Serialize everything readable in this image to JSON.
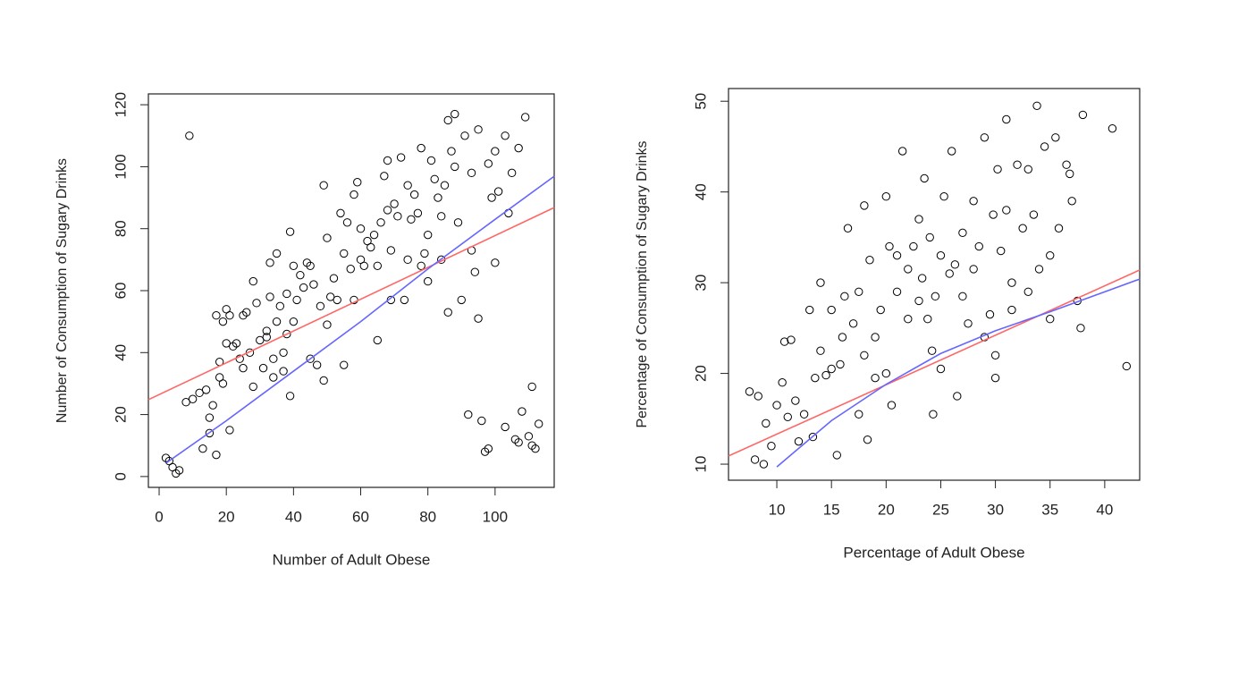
{
  "chart_data": [
    {
      "type": "scatter",
      "xlabel": "Number of Adult Obese",
      "ylabel": "Number of Consumption of Sugary Drinks",
      "xlim": [
        -3.2,
        117.6
      ],
      "ylim": [
        -3.5,
        123.5
      ],
      "xticks": [
        0,
        20,
        40,
        60,
        80,
        100
      ],
      "yticks": [
        0,
        20,
        40,
        60,
        80,
        100,
        120
      ],
      "color": "#000000",
      "x": [
        9,
        2,
        3,
        4,
        5,
        6,
        8,
        10,
        12,
        13,
        14,
        15,
        15,
        16,
        17,
        17,
        18,
        18,
        19,
        19,
        20,
        20,
        21,
        21,
        22,
        23,
        24,
        25,
        25,
        26,
        27,
        28,
        28,
        29,
        30,
        31,
        32,
        32,
        33,
        33,
        34,
        34,
        35,
        35,
        36,
        37,
        37,
        38,
        38,
        39,
        39,
        40,
        40,
        41,
        42,
        43,
        44,
        45,
        45,
        46,
        47,
        48,
        49,
        49,
        50,
        50,
        51,
        52,
        53,
        54,
        55,
        55,
        56,
        57,
        58,
        58,
        59,
        60,
        60,
        61,
        62,
        63,
        64,
        65,
        65,
        66,
        67,
        68,
        68,
        69,
        69,
        70,
        71,
        72,
        73,
        74,
        74,
        75,
        76,
        77,
        78,
        78,
        79,
        80,
        80,
        81,
        82,
        83,
        84,
        84,
        85,
        86,
        86,
        87,
        88,
        88,
        89,
        90,
        91,
        92,
        93,
        93,
        94,
        95,
        95,
        96,
        97,
        98,
        98,
        99,
        100,
        100,
        101,
        103,
        103,
        104,
        105,
        106,
        107,
        107,
        108,
        109,
        110,
        111,
        111,
        112,
        113
      ],
      "values": [
        110,
        6,
        5,
        3,
        1,
        2,
        24,
        25,
        27,
        9,
        28,
        19,
        14,
        23,
        7,
        52,
        37,
        32,
        30,
        50,
        54,
        43,
        15,
        52,
        42,
        43,
        38,
        35,
        52,
        53,
        40,
        29,
        63,
        56,
        44,
        35,
        47,
        45,
        69,
        58,
        38,
        32,
        50,
        72,
        55,
        40,
        34,
        59,
        46,
        26,
        79,
        68,
        50,
        57,
        65,
        61,
        69,
        38,
        68,
        62,
        36,
        55,
        94,
        31,
        49,
        77,
        58,
        64,
        57,
        85,
        36,
        72,
        82,
        67,
        91,
        57,
        95,
        80,
        70,
        68,
        76,
        74,
        78,
        44,
        68,
        82,
        97,
        102,
        86,
        73,
        57,
        88,
        84,
        103,
        57,
        94,
        70,
        83,
        91,
        85,
        106,
        68,
        72,
        78,
        63,
        102,
        96,
        90,
        70,
        84,
        94,
        53,
        115,
        105,
        117,
        100,
        82,
        57,
        110,
        20,
        73,
        98,
        66,
        51,
        112,
        18,
        8,
        9,
        101,
        90,
        69,
        105,
        92,
        110,
        16,
        85,
        98,
        12,
        11,
        106,
        21,
        116,
        13,
        29,
        10,
        9,
        17
      ],
      "lines": [
        {
          "color": "#ff6666",
          "x": [
            -3.2,
            117.6
          ],
          "values": [
            24.8,
            86.8
          ]
        },
        {
          "color": "#6666ff",
          "x": [
            2,
            20,
            40,
            60,
            80,
            100,
            117.6
          ],
          "values": [
            4.3,
            18,
            34,
            50,
            67,
            83,
            96.9
          ]
        }
      ]
    },
    {
      "type": "scatter",
      "xlabel": "Percentage of Adult Obese",
      "ylabel": "Percentage of Consumption of Sugary Drinks",
      "xlim": [
        5.58,
        43.2
      ],
      "ylim": [
        8.23,
        51.4
      ],
      "xticks": [
        10,
        15,
        20,
        25,
        30,
        35,
        40
      ],
      "yticks": [
        10,
        20,
        30,
        40,
        50
      ],
      "color": "#000000",
      "x": [
        7.5,
        8,
        8.3,
        8.8,
        9,
        9.5,
        10,
        10.5,
        10.7,
        11,
        11.3,
        11.7,
        12,
        12.5,
        13,
        13.3,
        13.5,
        14,
        14,
        14.5,
        15,
        15,
        15.5,
        15.8,
        16,
        16.2,
        16.5,
        17,
        17.5,
        17.5,
        18,
        18,
        18.3,
        18.5,
        19,
        19,
        19.5,
        20,
        20,
        20.3,
        20.5,
        21,
        21,
        21.5,
        22,
        22,
        22.5,
        23,
        23,
        23.3,
        23.5,
        23.8,
        24,
        24.2,
        24.3,
        24.5,
        25,
        25,
        25.3,
        25.8,
        26,
        26.3,
        26.5,
        27,
        27,
        27.5,
        28,
        28,
        28.5,
        29,
        29,
        29.5,
        29.8,
        30,
        30,
        30.2,
        30.5,
        31,
        31,
        31.5,
        31.5,
        32,
        32.5,
        33,
        33,
        33.5,
        33.8,
        34,
        34.5,
        35,
        35,
        35.5,
        35.8,
        36.5,
        37,
        37.5,
        37.8,
        38,
        40.7,
        42,
        36.8
      ],
      "values": [
        18,
        10.5,
        17.5,
        10,
        14.5,
        12,
        16.5,
        19,
        23.5,
        15.2,
        23.7,
        17,
        12.5,
        15.5,
        27,
        13,
        19.5,
        30,
        22.5,
        19.8,
        20.5,
        27,
        11,
        21,
        24,
        28.5,
        36,
        25.5,
        15.5,
        29,
        38.5,
        22,
        12.7,
        32.5,
        24,
        19.5,
        27,
        39.5,
        20,
        34,
        16.5,
        29,
        33,
        44.5,
        31.5,
        26,
        34,
        28,
        37,
        30.5,
        41.5,
        26,
        35,
        22.5,
        15.5,
        28.5,
        33,
        20.5,
        39.5,
        31,
        44.5,
        32,
        17.5,
        35.5,
        28.5,
        25.5,
        39,
        31.5,
        34,
        24,
        46,
        26.5,
        37.5,
        19.5,
        22,
        42.5,
        33.5,
        48,
        38,
        30,
        27,
        43,
        36,
        29,
        42.5,
        37.5,
        49.5,
        31.5,
        45,
        26,
        33,
        46,
        36,
        43,
        39,
        28,
        25,
        48.5,
        47,
        20.8,
        42
      ],
      "lines": [
        {
          "color": "#ff6666",
          "x": [
            5.58,
            43.2
          ],
          "values": [
            10.9,
            31.4
          ]
        },
        {
          "color": "#6666ff",
          "x": [
            10,
            15,
            20,
            25,
            30,
            35,
            43.2
          ],
          "values": [
            9.7,
            14.8,
            18.8,
            22.2,
            24.7,
            26.8,
            30.4
          ]
        }
      ]
    }
  ]
}
